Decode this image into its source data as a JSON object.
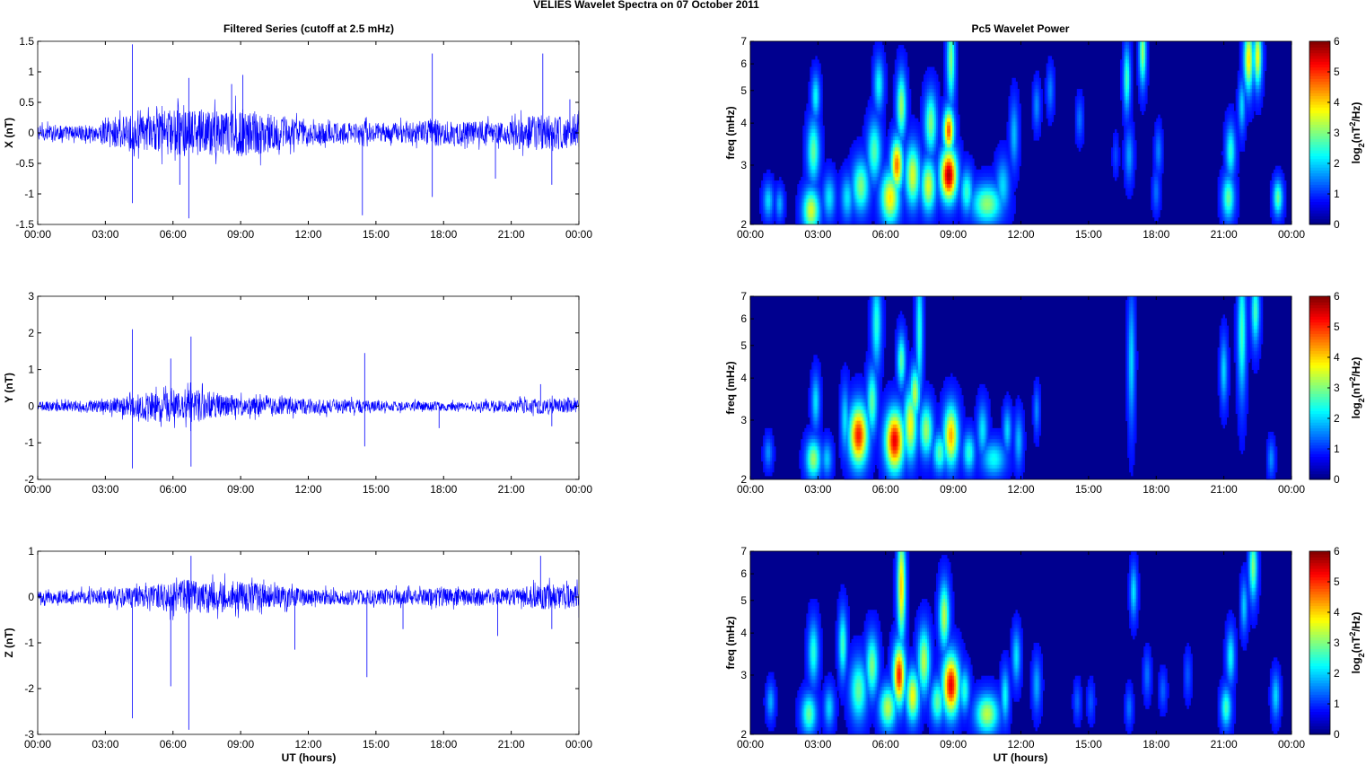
{
  "figure": {
    "title": "VELIES Wavelet Spectra on 07 October   2011",
    "left_title": "Filtered Series (cutoff at 2.5 mHz)",
    "right_title": "Pc5 Wavelet Power",
    "xlabel": "UT (hours)"
  },
  "chart_data": [
    {
      "type": "line",
      "panel": "X",
      "ylabel": "X (nT)",
      "x_ticks": [
        "00:00",
        "03:00",
        "06:00",
        "09:00",
        "12:00",
        "15:00",
        "18:00",
        "21:00",
        "00:00"
      ],
      "xlim_hours": [
        0,
        24
      ],
      "ylim": [
        -1.5,
        1.5
      ],
      "y_ticks": [
        1.5,
        1,
        0.5,
        0,
        -0.5,
        -1,
        -1.5
      ],
      "y_tick_labels": [
        "1.5",
        "1",
        "0.5",
        "0",
        "-0.5",
        "-1",
        "-1.5"
      ],
      "line_color": "#0000ff",
      "noise_envelope": [
        [
          0,
          0.15
        ],
        [
          2.7,
          0.15
        ],
        [
          3,
          0.3
        ],
        [
          5,
          0.35
        ],
        [
          6,
          0.45
        ],
        [
          8,
          0.45
        ],
        [
          9,
          0.5
        ],
        [
          10.5,
          0.35
        ],
        [
          12,
          0.2
        ],
        [
          14.5,
          0.2
        ],
        [
          17,
          0.2
        ],
        [
          17.5,
          0.3
        ],
        [
          18,
          0.22
        ],
        [
          21,
          0.22
        ],
        [
          21.5,
          0.3
        ],
        [
          22.5,
          0.35
        ],
        [
          24,
          0.28
        ]
      ],
      "spikes": [
        [
          4.2,
          1.45
        ],
        [
          4.2,
          -1.15
        ],
        [
          6.7,
          0.9
        ],
        [
          6.7,
          -1.4
        ],
        [
          6.3,
          -0.85
        ],
        [
          9.1,
          0.95
        ],
        [
          8.6,
          0.8
        ],
        [
          14.4,
          -1.35
        ],
        [
          17.5,
          1.3
        ],
        [
          17.5,
          -1.05
        ],
        [
          20.3,
          -0.75
        ],
        [
          22.4,
          1.3
        ],
        [
          22.8,
          -0.85
        ],
        [
          23.6,
          0.55
        ]
      ]
    },
    {
      "type": "line",
      "panel": "Y",
      "ylabel": "Y (nT)",
      "x_ticks": [
        "00:00",
        "03:00",
        "06:00",
        "09:00",
        "12:00",
        "15:00",
        "18:00",
        "21:00",
        "00:00"
      ],
      "xlim_hours": [
        0,
        24
      ],
      "ylim": [
        -2,
        3
      ],
      "y_ticks": [
        3,
        2,
        1,
        0,
        -1,
        -2
      ],
      "y_tick_labels": [
        "3",
        "2",
        "1",
        "0",
        "-1",
        "-2"
      ],
      "line_color": "#0000ff",
      "noise_envelope": [
        [
          0,
          0.15
        ],
        [
          3,
          0.2
        ],
        [
          5,
          0.45
        ],
        [
          6,
          0.5
        ],
        [
          7,
          0.55
        ],
        [
          8,
          0.35
        ],
        [
          9,
          0.3
        ],
        [
          12,
          0.25
        ],
        [
          14,
          0.22
        ],
        [
          16,
          0.15
        ],
        [
          19,
          0.15
        ],
        [
          21,
          0.2
        ],
        [
          22.5,
          0.25
        ],
        [
          24,
          0.2
        ]
      ],
      "spikes": [
        [
          4.2,
          2.1
        ],
        [
          4.2,
          -1.7
        ],
        [
          6.8,
          1.9
        ],
        [
          6.8,
          -1.65
        ],
        [
          5.9,
          1.3
        ],
        [
          14.5,
          1.45
        ],
        [
          14.5,
          -1.1
        ],
        [
          17.8,
          -0.6
        ],
        [
          22.3,
          0.6
        ],
        [
          22.8,
          -0.55
        ]
      ]
    },
    {
      "type": "line",
      "panel": "Z",
      "ylabel": "Z (nT)",
      "x_ticks": [
        "00:00",
        "03:00",
        "06:00",
        "09:00",
        "12:00",
        "15:00",
        "18:00",
        "21:00",
        "00:00"
      ],
      "xlim_hours": [
        0,
        24
      ],
      "ylim": [
        -3,
        1
      ],
      "y_ticks": [
        1,
        0,
        -1,
        -2,
        -3
      ],
      "y_tick_labels": [
        "1",
        "0",
        "-1",
        "-2",
        "-3"
      ],
      "line_color": "#0000ff",
      "noise_envelope": [
        [
          0,
          0.15
        ],
        [
          3,
          0.2
        ],
        [
          5,
          0.3
        ],
        [
          6.5,
          0.45
        ],
        [
          8,
          0.4
        ],
        [
          9,
          0.4
        ],
        [
          10.5,
          0.3
        ],
        [
          12,
          0.2
        ],
        [
          17,
          0.2
        ],
        [
          18,
          0.25
        ],
        [
          21,
          0.2
        ],
        [
          22.5,
          0.35
        ],
        [
          24,
          0.3
        ]
      ],
      "spikes": [
        [
          4.2,
          -2.65
        ],
        [
          6.7,
          -2.9
        ],
        [
          6.8,
          0.9
        ],
        [
          5.9,
          -1.95
        ],
        [
          11.4,
          -1.15
        ],
        [
          14.6,
          -1.75
        ],
        [
          16.2,
          -0.7
        ],
        [
          20.4,
          -0.85
        ],
        [
          22.3,
          0.9
        ],
        [
          22.8,
          -0.7
        ],
        [
          24,
          -0.45
        ]
      ]
    },
    {
      "type": "heatmap",
      "panel": "X",
      "ylabel": "freq (mHz)",
      "y_scale": "log",
      "ylim": [
        2,
        7
      ],
      "y_ticks": [
        7,
        6,
        5,
        4,
        3,
        2
      ],
      "x_ticks": [
        "00:00",
        "03:00",
        "06:00",
        "09:00",
        "12:00",
        "15:00",
        "18:00",
        "21:00",
        "00:00"
      ],
      "xlim_hours": [
        0,
        24
      ],
      "colorbar": {
        "label": "log2(nT²/Hz)",
        "range": [
          0,
          6
        ],
        "ticks": [
          0,
          1,
          2,
          3,
          4,
          5,
          6
        ],
        "colormap": "jet"
      },
      "blobs": [
        [
          0.8,
          2.35,
          0.15,
          0.08,
          1.5
        ],
        [
          1.3,
          2.3,
          0.12,
          0.07,
          1.2
        ],
        [
          2.7,
          2.2,
          0.25,
          0.1,
          3.2
        ],
        [
          2.8,
          3.3,
          0.18,
          0.14,
          2.4
        ],
        [
          2.9,
          4.8,
          0.12,
          0.1,
          1.8
        ],
        [
          3.5,
          2.4,
          0.18,
          0.1,
          1.6
        ],
        [
          4.3,
          2.4,
          0.18,
          0.1,
          1.6
        ],
        [
          4.9,
          2.6,
          0.25,
          0.12,
          2.6
        ],
        [
          5.5,
          3.3,
          0.2,
          0.14,
          2.3
        ],
        [
          5.7,
          5.2,
          0.14,
          0.12,
          1.8
        ],
        [
          6.2,
          2.4,
          0.28,
          0.12,
          3.6
        ],
        [
          6.5,
          3.0,
          0.18,
          0.12,
          4.4
        ],
        [
          6.7,
          4.5,
          0.14,
          0.15,
          2.8
        ],
        [
          7.2,
          2.8,
          0.22,
          0.14,
          3.2
        ],
        [
          7.9,
          2.6,
          0.22,
          0.12,
          3.2
        ],
        [
          8.0,
          4.0,
          0.18,
          0.14,
          2.6
        ],
        [
          8.8,
          2.8,
          0.25,
          0.12,
          5.7
        ],
        [
          8.8,
          3.8,
          0.16,
          0.1,
          4.6
        ],
        [
          8.9,
          6.2,
          0.12,
          0.2,
          2.6
        ],
        [
          9.6,
          2.5,
          0.18,
          0.1,
          2.1
        ],
        [
          10.5,
          2.3,
          0.45,
          0.09,
          2.7
        ],
        [
          11.2,
          2.6,
          0.2,
          0.12,
          1.5
        ],
        [
          11.7,
          3.7,
          0.12,
          0.15,
          1.3
        ],
        [
          12.7,
          4.5,
          0.1,
          0.1,
          1.0
        ],
        [
          13.3,
          5.0,
          0.1,
          0.1,
          0.9
        ],
        [
          14.6,
          4.1,
          0.1,
          0.09,
          0.8
        ],
        [
          16.2,
          3.2,
          0.08,
          0.08,
          0.5
        ],
        [
          16.8,
          3.2,
          0.12,
          0.12,
          1.1
        ],
        [
          16.7,
          5.4,
          0.1,
          0.15,
          2.2
        ],
        [
          17.4,
          6.5,
          0.1,
          0.15,
          2.8
        ],
        [
          18.0,
          2.5,
          0.1,
          0.09,
          0.8
        ],
        [
          18.1,
          3.3,
          0.1,
          0.1,
          0.9
        ],
        [
          21.2,
          2.4,
          0.18,
          0.1,
          2.4
        ],
        [
          21.3,
          3.3,
          0.14,
          0.12,
          2.0
        ],
        [
          21.8,
          4.5,
          0.1,
          0.12,
          1.5
        ],
        [
          22.1,
          6.2,
          0.14,
          0.15,
          3.6
        ],
        [
          22.5,
          6.3,
          0.12,
          0.14,
          3.4
        ],
        [
          23.4,
          2.4,
          0.14,
          0.08,
          2.4
        ]
      ]
    },
    {
      "type": "heatmap",
      "panel": "Y",
      "ylabel": "freq (mHz)",
      "y_scale": "log",
      "ylim": [
        2,
        7
      ],
      "y_ticks": [
        7,
        6,
        5,
        4,
        3,
        2
      ],
      "x_ticks": [
        "00:00",
        "03:00",
        "06:00",
        "09:00",
        "12:00",
        "15:00",
        "18:00",
        "21:00",
        "00:00"
      ],
      "xlim_hours": [
        0,
        24
      ],
      "colorbar": {
        "label": "log2(nT²/Hz)",
        "range": [
          0,
          6
        ],
        "ticks": [
          0,
          1,
          2,
          3,
          4,
          5,
          6
        ],
        "colormap": "jet"
      },
      "blobs": [
        [
          0.8,
          2.4,
          0.12,
          0.07,
          1.0
        ],
        [
          2.8,
          2.3,
          0.22,
          0.09,
          2.8
        ],
        [
          2.9,
          3.4,
          0.12,
          0.12,
          1.6
        ],
        [
          3.4,
          2.3,
          0.15,
          0.08,
          1.4
        ],
        [
          4.2,
          3.0,
          0.12,
          0.15,
          1.6
        ],
        [
          4.8,
          2.7,
          0.28,
          0.14,
          5.0
        ],
        [
          5.4,
          3.4,
          0.15,
          0.15,
          2.4
        ],
        [
          5.6,
          5.8,
          0.14,
          0.2,
          2.0
        ],
        [
          6.4,
          2.6,
          0.28,
          0.14,
          5.3
        ],
        [
          6.7,
          4.5,
          0.12,
          0.12,
          2.4
        ],
        [
          7.1,
          2.9,
          0.2,
          0.16,
          3.4
        ],
        [
          7.3,
          3.6,
          0.15,
          0.12,
          3.0
        ],
        [
          7.5,
          5.5,
          0.1,
          0.3,
          2.0
        ],
        [
          7.8,
          2.8,
          0.2,
          0.12,
          2.8
        ],
        [
          8.4,
          2.4,
          0.2,
          0.09,
          2.3
        ],
        [
          8.9,
          2.7,
          0.22,
          0.14,
          4.0
        ],
        [
          9.7,
          2.4,
          0.18,
          0.09,
          2.0
        ],
        [
          10.3,
          2.8,
          0.15,
          0.12,
          1.6
        ],
        [
          10.8,
          2.3,
          0.35,
          0.08,
          1.8
        ],
        [
          11.4,
          2.8,
          0.12,
          0.1,
          1.5
        ],
        [
          11.9,
          2.6,
          0.12,
          0.12,
          1.3
        ],
        [
          12.7,
          3.2,
          0.08,
          0.1,
          1.0
        ],
        [
          16.9,
          4.5,
          0.1,
          0.3,
          1.5
        ],
        [
          21.0,
          4.2,
          0.1,
          0.15,
          1.5
        ],
        [
          21.8,
          5.5,
          0.12,
          0.3,
          2.2
        ],
        [
          22.4,
          6.3,
          0.12,
          0.15,
          2.2
        ],
        [
          23.1,
          2.3,
          0.1,
          0.08,
          1.0
        ]
      ]
    },
    {
      "type": "heatmap",
      "panel": "Z",
      "ylabel": "freq (mHz)",
      "y_scale": "log",
      "ylim": [
        2,
        7
      ],
      "y_ticks": [
        7,
        6,
        5,
        4,
        3,
        2
      ],
      "x_ticks": [
        "00:00",
        "03:00",
        "06:00",
        "09:00",
        "12:00",
        "15:00",
        "18:00",
        "21:00",
        "00:00"
      ],
      "xlim_hours": [
        0,
        24
      ],
      "colorbar": {
        "label": "log2(nT²/Hz)",
        "range": [
          0,
          6
        ],
        "ticks": [
          0,
          1,
          2,
          3,
          4,
          5,
          6
        ],
        "colormap": "jet"
      },
      "blobs": [
        [
          0.9,
          2.5,
          0.12,
          0.08,
          1.2
        ],
        [
          2.6,
          2.3,
          0.22,
          0.09,
          2.4
        ],
        [
          2.8,
          3.5,
          0.15,
          0.14,
          2.0
        ],
        [
          3.5,
          2.4,
          0.15,
          0.09,
          1.5
        ],
        [
          4.1,
          3.7,
          0.12,
          0.15,
          2.2
        ],
        [
          4.8,
          2.7,
          0.25,
          0.14,
          2.4
        ],
        [
          5.4,
          3.2,
          0.18,
          0.14,
          2.6
        ],
        [
          6.1,
          2.4,
          0.25,
          0.1,
          3.0
        ],
        [
          6.6,
          3.0,
          0.18,
          0.14,
          5.0
        ],
        [
          6.7,
          5.5,
          0.12,
          0.25,
          3.8
        ],
        [
          7.2,
          2.6,
          0.2,
          0.12,
          3.4
        ],
        [
          7.7,
          3.3,
          0.18,
          0.15,
          3.0
        ],
        [
          8.3,
          2.5,
          0.2,
          0.1,
          2.4
        ],
        [
          8.9,
          2.8,
          0.25,
          0.14,
          5.3
        ],
        [
          8.6,
          4.5,
          0.15,
          0.15,
          3.0
        ],
        [
          9.5,
          2.7,
          0.15,
          0.1,
          2.0
        ],
        [
          10.5,
          2.3,
          0.35,
          0.09,
          3.0
        ],
        [
          11.3,
          2.6,
          0.12,
          0.12,
          1.8
        ],
        [
          11.8,
          3.4,
          0.12,
          0.12,
          1.6
        ],
        [
          12.7,
          2.8,
          0.12,
          0.12,
          1.2
        ],
        [
          14.5,
          2.5,
          0.1,
          0.08,
          0.7
        ],
        [
          15.1,
          2.5,
          0.1,
          0.08,
          0.6
        ],
        [
          16.8,
          2.4,
          0.1,
          0.08,
          0.8
        ],
        [
          17.0,
          5.3,
          0.1,
          0.12,
          1.6
        ],
        [
          17.6,
          3.0,
          0.1,
          0.1,
          0.8
        ],
        [
          18.3,
          2.7,
          0.1,
          0.08,
          0.7
        ],
        [
          19.4,
          3.0,
          0.1,
          0.1,
          0.6
        ],
        [
          21.1,
          2.4,
          0.15,
          0.09,
          2.2
        ],
        [
          21.3,
          3.4,
          0.12,
          0.12,
          1.8
        ],
        [
          21.9,
          4.8,
          0.1,
          0.12,
          1.4
        ],
        [
          22.3,
          6.3,
          0.12,
          0.15,
          2.6
        ],
        [
          23.3,
          2.6,
          0.12,
          0.1,
          1.5
        ]
      ]
    }
  ]
}
